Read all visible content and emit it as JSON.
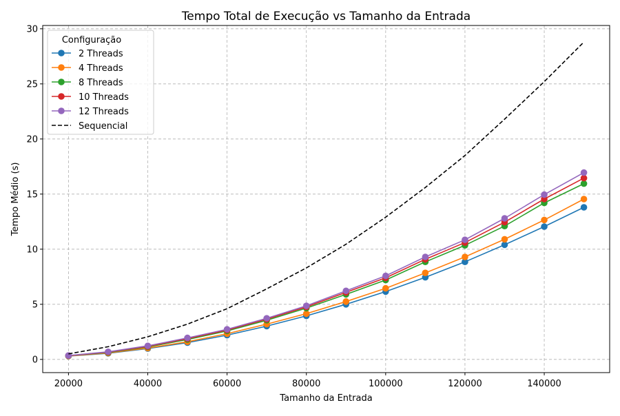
{
  "chart_data": {
    "type": "line",
    "title": "Tempo Total de Execução vs Tamanho da Entrada",
    "xlabel": "Tamanho da Entrada",
    "ylabel": "Tempo Médio (s)",
    "xlim": [
      13500,
      156500
    ],
    "ylim": [
      -1.2,
      30.3
    ],
    "x_ticks": [
      20000,
      40000,
      60000,
      80000,
      100000,
      120000,
      140000
    ],
    "y_ticks": [
      0,
      5,
      10,
      15,
      20,
      25,
      30
    ],
    "grid": true,
    "legend_title": "Configuração",
    "legend_position": "upper-left",
    "x": [
      20000,
      30000,
      40000,
      50000,
      60000,
      70000,
      80000,
      90000,
      100000,
      110000,
      120000,
      130000,
      140000,
      150000
    ],
    "series": [
      {
        "name": "2 Threads",
        "color": "#1f77b4",
        "style": "solid-marker",
        "values": [
          0.3,
          0.55,
          0.98,
          1.52,
          2.2,
          3.02,
          3.95,
          5.0,
          6.15,
          7.45,
          8.85,
          10.4,
          12.05,
          13.8
        ]
      },
      {
        "name": "4 Threads",
        "color": "#ff7f0e",
        "style": "solid-marker",
        "values": [
          0.31,
          0.58,
          1.03,
          1.6,
          2.33,
          3.2,
          4.15,
          5.25,
          6.45,
          7.85,
          9.3,
          10.9,
          12.65,
          14.55
        ]
      },
      {
        "name": "8 Threads",
        "color": "#2ca02c",
        "style": "solid-marker",
        "values": [
          0.33,
          0.63,
          1.13,
          1.8,
          2.58,
          3.55,
          4.65,
          5.9,
          7.2,
          8.85,
          10.35,
          12.1,
          14.2,
          15.95
        ]
      },
      {
        "name": "10 Threads",
        "color": "#d62728",
        "style": "solid-marker",
        "values": [
          0.34,
          0.66,
          1.18,
          1.88,
          2.66,
          3.65,
          4.76,
          6.08,
          7.4,
          9.08,
          10.6,
          12.45,
          14.55,
          16.45
        ]
      },
      {
        "name": "12 Threads",
        "color": "#9467bd",
        "style": "solid-marker",
        "values": [
          0.35,
          0.69,
          1.23,
          1.95,
          2.73,
          3.73,
          4.86,
          6.22,
          7.58,
          9.3,
          10.85,
          12.8,
          14.95,
          16.95
        ]
      },
      {
        "name": "Sequencial",
        "color": "#000000",
        "style": "dashed",
        "values": [
          0.5,
          1.15,
          2.05,
          3.2,
          4.6,
          6.4,
          8.3,
          10.45,
          12.9,
          15.6,
          18.5,
          21.8,
          25.2,
          28.8
        ]
      }
    ]
  }
}
